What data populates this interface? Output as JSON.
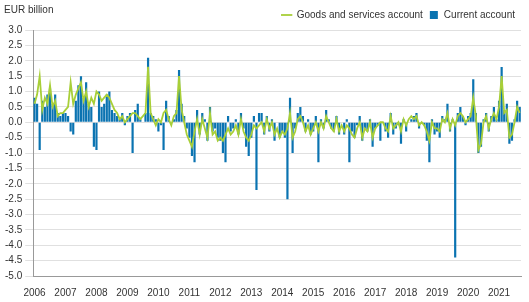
{
  "chart_data": {
    "type": "bar",
    "y_label": "EUR billion",
    "legend": "top-right",
    "grid": true,
    "ylim": [
      -5.0,
      3.0
    ],
    "yticks": [
      {
        "value": -5.0,
        "label": "-5.0"
      },
      {
        "value": -4.5,
        "label": "-4.5"
      },
      {
        "value": -4.0,
        "label": "-4.0"
      },
      {
        "value": -3.5,
        "label": "-3.5"
      },
      {
        "value": -3.0,
        "label": "-3.0"
      },
      {
        "value": -2.5,
        "label": "-2.5"
      },
      {
        "value": -2.0,
        "label": "-2.0"
      },
      {
        "value": -1.5,
        "label": "-1.5"
      },
      {
        "value": -1.0,
        "label": "-1.0"
      },
      {
        "value": -0.5,
        "label": "-0.5"
      },
      {
        "value": 0.0,
        "label": "0.0"
      },
      {
        "value": 0.5,
        "label": "0.5"
      },
      {
        "value": 1.0,
        "label": "1.0"
      },
      {
        "value": 1.5,
        "label": "1.5"
      },
      {
        "value": 2.0,
        "label": "2.0"
      },
      {
        "value": 2.5,
        "label": "2.5"
      },
      {
        "value": 3.0,
        "label": "3.0"
      }
    ],
    "categories": [
      "2006",
      null,
      null,
      null,
      null,
      null,
      null,
      null,
      null,
      null,
      null,
      null,
      "2007",
      null,
      null,
      null,
      null,
      null,
      null,
      null,
      null,
      null,
      null,
      null,
      "2008",
      null,
      null,
      null,
      null,
      null,
      null,
      null,
      null,
      null,
      null,
      null,
      "2009",
      null,
      null,
      null,
      null,
      null,
      null,
      null,
      null,
      null,
      null,
      null,
      "2010",
      null,
      null,
      null,
      null,
      null,
      null,
      null,
      null,
      null,
      null,
      null,
      "2011",
      null,
      null,
      null,
      null,
      null,
      null,
      null,
      null,
      null,
      null,
      null,
      "2012",
      null,
      null,
      null,
      null,
      null,
      null,
      null,
      null,
      null,
      null,
      null,
      "2013",
      null,
      null,
      null,
      null,
      null,
      null,
      null,
      null,
      null,
      null,
      null,
      "2014",
      null,
      null,
      null,
      null,
      null,
      null,
      null,
      null,
      null,
      null,
      null,
      "2015",
      null,
      null,
      null,
      null,
      null,
      null,
      null,
      null,
      null,
      null,
      null,
      "2016",
      null,
      null,
      null,
      null,
      null,
      null,
      null,
      null,
      null,
      null,
      null,
      "2017",
      null,
      null,
      null,
      null,
      null,
      null,
      null,
      null,
      null,
      null,
      null,
      "2018",
      null,
      null,
      null,
      null,
      null,
      null,
      null,
      null,
      null,
      null,
      null,
      "2019",
      null,
      null,
      null,
      null,
      null,
      null,
      null,
      null,
      null,
      null,
      null,
      "2020",
      null,
      null,
      null,
      null,
      null,
      null,
      null,
      null,
      null,
      null,
      null,
      "2021",
      null,
      null,
      null,
      null,
      null,
      null,
      null,
      null
    ],
    "series": [
      {
        "name": "Current account",
        "type": "bar",
        "color": "#0a73b1",
        "values": [
          0.8,
          0.6,
          -0.9,
          0.7,
          0.5,
          0.9,
          1.1,
          0.6,
          0.9,
          0.3,
          0.2,
          0.3,
          0.3,
          0.2,
          -0.3,
          -0.4,
          0.7,
          1.2,
          1.5,
          0.8,
          1.3,
          0.6,
          0.5,
          -0.8,
          -0.9,
          1.0,
          0.5,
          0.6,
          0.9,
          1.0,
          0.4,
          0.3,
          0.2,
          0.1,
          0.3,
          -0.1,
          0.2,
          0.3,
          -1.0,
          0.4,
          0.6,
          0.1,
          0.0,
          0.3,
          2.1,
          0.3,
          0.2,
          0.1,
          -0.3,
          -0.1,
          -0.9,
          0.7,
          0.2,
          0.0,
          0.1,
          0.4,
          1.7,
          0.6,
          0.2,
          -0.2,
          -0.5,
          -1.1,
          -1.3,
          0.4,
          -0.4,
          0.3,
          0.1,
          -0.6,
          0.5,
          -0.3,
          -0.2,
          -0.5,
          -0.6,
          -1.0,
          -1.3,
          0.2,
          -0.3,
          -0.2,
          0.1,
          -0.4,
          0.3,
          -0.2,
          -0.8,
          -1.1,
          -0.5,
          0.2,
          -2.2,
          0.3,
          0.3,
          -0.4,
          0.2,
          -0.3,
          0.1,
          -0.6,
          0.0,
          -0.5,
          -0.3,
          -0.5,
          -2.5,
          0.8,
          -1.0,
          -0.2,
          0.3,
          0.5,
          0.2,
          -0.3,
          0.1,
          -0.4,
          -0.3,
          0.2,
          -1.3,
          0.1,
          -0.2,
          0.4,
          0.1,
          -0.2,
          -0.3,
          0.2,
          -0.4,
          0.0,
          -0.4,
          0.1,
          -1.3,
          -0.3,
          -0.5,
          -0.1,
          0.2,
          -0.6,
          -0.2,
          -0.3,
          0.1,
          -0.8,
          -0.2,
          -0.1,
          -0.6,
          0.0,
          -0.3,
          -0.5,
          0.3,
          -0.4,
          -0.2,
          -0.1,
          -0.7,
          0.1,
          -0.3,
          0.0,
          0.1,
          0.2,
          0.3,
          -0.2,
          0.0,
          -0.1,
          -0.6,
          -1.3,
          0.1,
          -0.4,
          -0.3,
          -0.5,
          0.2,
          0.1,
          0.6,
          -0.3,
          0.1,
          -4.4,
          0.3,
          0.5,
          0.2,
          -0.1,
          0.2,
          0.3,
          1.4,
          0.3,
          -1.0,
          -0.8,
          0.1,
          0.3,
          -0.3,
          0.2,
          0.5,
          0.1,
          0.7,
          1.8,
          0.4,
          0.6,
          -0.7,
          -0.6,
          0.1,
          0.7,
          0.5
        ]
      },
      {
        "name": "Goods and services account",
        "type": "line",
        "color": "#a8cf38",
        "values": [
          0.6,
          0.9,
          1.5,
          0.4,
          0.8,
          0.6,
          1.2,
          0.5,
          0.7,
          0.2,
          0.3,
          0.3,
          0.4,
          0.5,
          1.3,
          0.6,
          0.9,
          1.1,
          1.3,
          0.7,
          1.0,
          0.5,
          0.8,
          0.6,
          1.0,
          0.9,
          0.7,
          0.8,
          0.9,
          0.8,
          0.6,
          0.4,
          0.3,
          0.1,
          0.2,
          0.0,
          0.1,
          0.2,
          0.3,
          0.3,
          0.2,
          0.1,
          0.2,
          0.3,
          1.8,
          0.3,
          0.1,
          -0.1,
          0.1,
          0.0,
          0.3,
          0.4,
          0.1,
          -0.1,
          0.2,
          0.3,
          1.5,
          0.4,
          0.0,
          -0.4,
          -0.6,
          -0.8,
          -0.3,
          0.1,
          -0.4,
          0.1,
          -0.2,
          -0.5,
          0.3,
          -0.4,
          -0.3,
          -0.6,
          -0.5,
          -0.6,
          -0.4,
          -0.2,
          -0.4,
          -0.3,
          -0.1,
          -0.4,
          0.1,
          -0.3,
          -0.5,
          -0.6,
          -0.4,
          -0.1,
          -0.2,
          -0.1,
          0.0,
          -0.3,
          0.1,
          -0.2,
          0.0,
          -0.4,
          -0.2,
          -0.5,
          -0.3,
          -0.4,
          -0.2,
          0.3,
          -0.5,
          -0.3,
          0.1,
          0.2,
          0.0,
          -0.3,
          -0.1,
          -0.4,
          -0.2,
          0.0,
          -0.3,
          0.0,
          -0.2,
          0.2,
          0.0,
          -0.2,
          -0.3,
          0.1,
          -0.3,
          -0.1,
          -0.3,
          -0.1,
          -0.2,
          -0.4,
          -0.5,
          -0.2,
          0.0,
          -0.5,
          -0.2,
          -0.3,
          0.0,
          -0.5,
          -0.2,
          -0.1,
          0.0,
          0.0,
          -0.2,
          -0.3,
          0.2,
          -0.2,
          -0.1,
          0.0,
          -0.3,
          0.1,
          -0.1,
          0.1,
          0.2,
          0.1,
          0.2,
          -0.1,
          0.0,
          -0.1,
          -0.3,
          -0.6,
          0.0,
          -0.2,
          -0.2,
          -0.3,
          0.1,
          0.0,
          0.3,
          -0.2,
          0.1,
          -0.1,
          0.2,
          0.3,
          0.2,
          0.0,
          0.1,
          0.2,
          0.8,
          0.2,
          -0.9,
          -0.7,
          0.0,
          0.2,
          -0.2,
          0.1,
          0.3,
          0.1,
          0.5,
          1.5,
          0.3,
          0.4,
          -0.5,
          -0.4,
          0.0,
          0.5,
          0.3
        ]
      }
    ]
  }
}
